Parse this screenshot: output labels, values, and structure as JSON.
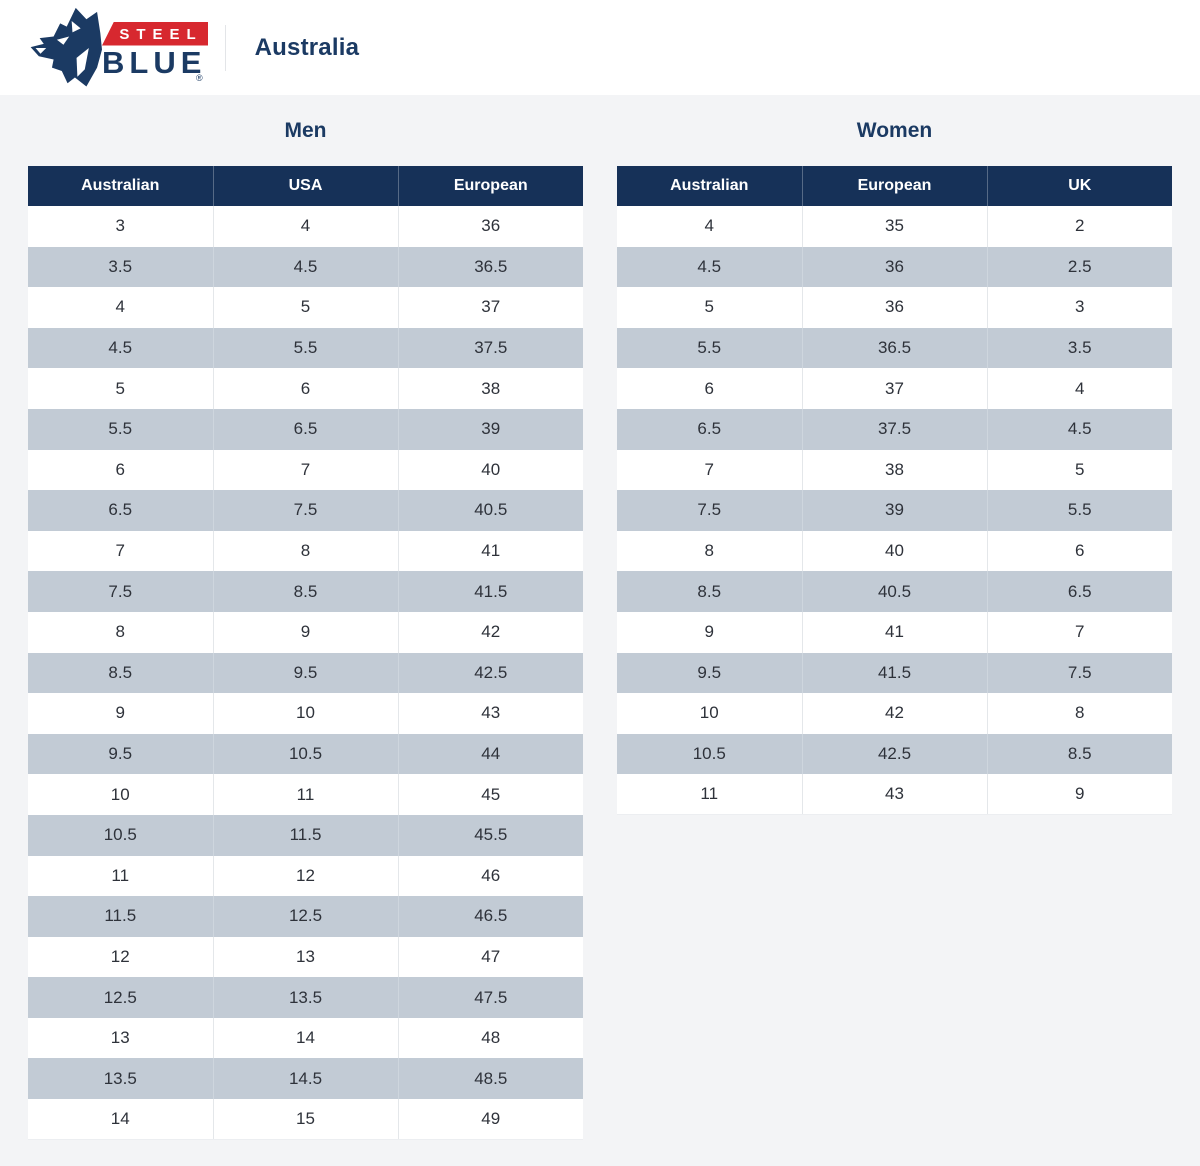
{
  "header": {
    "brand": {
      "steel": "STEEL",
      "blue": "BLUE",
      "registered": "®"
    },
    "region": "Australia"
  },
  "tables": {
    "men": {
      "title": "Men",
      "columns": [
        "Australian",
        "USA",
        "European"
      ],
      "rows": [
        [
          "3",
          "4",
          "36"
        ],
        [
          "3.5",
          "4.5",
          "36.5"
        ],
        [
          "4",
          "5",
          "37"
        ],
        [
          "4.5",
          "5.5",
          "37.5"
        ],
        [
          "5",
          "6",
          "38"
        ],
        [
          "5.5",
          "6.5",
          "39"
        ],
        [
          "6",
          "7",
          "40"
        ],
        [
          "6.5",
          "7.5",
          "40.5"
        ],
        [
          "7",
          "8",
          "41"
        ],
        [
          "7.5",
          "8.5",
          "41.5"
        ],
        [
          "8",
          "9",
          "42"
        ],
        [
          "8.5",
          "9.5",
          "42.5"
        ],
        [
          "9",
          "10",
          "43"
        ],
        [
          "9.5",
          "10.5",
          "44"
        ],
        [
          "10",
          "11",
          "45"
        ],
        [
          "10.5",
          "11.5",
          "45.5"
        ],
        [
          "11",
          "12",
          "46"
        ],
        [
          "11.5",
          "12.5",
          "46.5"
        ],
        [
          "12",
          "13",
          "47"
        ],
        [
          "12.5",
          "13.5",
          "47.5"
        ],
        [
          "13",
          "14",
          "48"
        ],
        [
          "13.5",
          "14.5",
          "48.5"
        ],
        [
          "14",
          "15",
          "49"
        ]
      ]
    },
    "women": {
      "title": "Women",
      "columns": [
        "Australian",
        "European",
        "UK"
      ],
      "rows": [
        [
          "4",
          "35",
          "2"
        ],
        [
          "4.5",
          "36",
          "2.5"
        ],
        [
          "5",
          "36",
          "3"
        ],
        [
          "5.5",
          "36.5",
          "3.5"
        ],
        [
          "6",
          "37",
          "4"
        ],
        [
          "6.5",
          "37.5",
          "4.5"
        ],
        [
          "7",
          "38",
          "5"
        ],
        [
          "7.5",
          "39",
          "5.5"
        ],
        [
          "8",
          "40",
          "6"
        ],
        [
          "8.5",
          "40.5",
          "6.5"
        ],
        [
          "9",
          "41",
          "7"
        ],
        [
          "9.5",
          "41.5",
          "7.5"
        ],
        [
          "10",
          "42",
          "8"
        ],
        [
          "10.5",
          "42.5",
          "8.5"
        ],
        [
          "11",
          "43",
          "9"
        ]
      ]
    }
  },
  "colors": {
    "navy_header": "#163158",
    "navy_text": "#1b3a63",
    "brand_red": "#d7282f",
    "row_stripe": "#c2cbd5",
    "page_background": "#f3f4f6"
  }
}
